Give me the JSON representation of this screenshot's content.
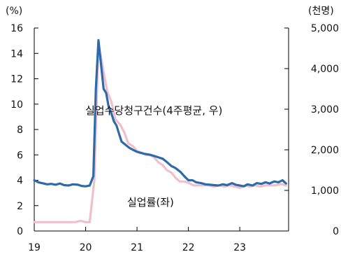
{
  "chart_data": {
    "type": "line",
    "left_axis": {
      "unit_label": "(%)",
      "ylim": [
        0,
        16
      ],
      "ticks": [
        0,
        2,
        4,
        6,
        8,
        10,
        12,
        14,
        16
      ],
      "tick_labels": [
        "0",
        "2",
        "4",
        "6",
        "8",
        "10",
        "12",
        "14",
        "16"
      ]
    },
    "right_axis": {
      "unit_label": "(천명)",
      "ylim": [
        0,
        5000
      ],
      "ticks": [
        0,
        1000,
        2000,
        3000,
        4000,
        5000
      ],
      "tick_labels": [
        "0",
        "1,000",
        "2,000",
        "3,000",
        "4,000",
        "5,000"
      ]
    },
    "x_axis": {
      "xlim": [
        2019.0,
        2023.95
      ],
      "ticks": [
        2019,
        2020,
        2021,
        2022,
        2023
      ],
      "tick_labels": [
        "19",
        "20",
        "21",
        "22",
        "23"
      ]
    },
    "grid": false,
    "annotations": [
      {
        "text": "실업수당청구건수(4주평균,   우)",
        "series": "claims"
      },
      {
        "text": "실업률(좌)",
        "series": "unemployment"
      }
    ],
    "series": [
      {
        "id": "claims",
        "axis": "right",
        "color": "#2e6aa8",
        "x": [
          2019.0,
          2019.08,
          2019.15,
          2019.25,
          2019.33,
          2019.42,
          2019.5,
          2019.58,
          2019.67,
          2019.75,
          2019.85,
          2019.92,
          2020.0,
          2020.08,
          2020.15,
          2020.2,
          2020.25,
          2020.3,
          2020.35,
          2020.4,
          2020.45,
          2020.5,
          2020.55,
          2020.6,
          2020.65,
          2020.7,
          2020.75,
          2020.8,
          2020.85,
          2020.92,
          2021.0,
          2021.08,
          2021.15,
          2021.25,
          2021.33,
          2021.4,
          2021.5,
          2021.58,
          2021.67,
          2021.75,
          2021.85,
          2021.92,
          2022.0,
          2022.08,
          2022.15,
          2022.25,
          2022.33,
          2022.42,
          2022.5,
          2022.58,
          2022.67,
          2022.75,
          2022.85,
          2022.92,
          2023.0,
          2023.08,
          2023.15,
          2023.25,
          2023.33,
          2023.42,
          2023.5,
          2023.58,
          2023.67,
          2023.75,
          2023.83,
          2023.9
        ],
        "values": [
          1250,
          1200,
          1180,
          1150,
          1160,
          1140,
          1170,
          1130,
          1120,
          1150,
          1140,
          1110,
          1100,
          1120,
          1350,
          3500,
          4700,
          4100,
          3500,
          3400,
          3050,
          2900,
          2700,
          2600,
          2400,
          2200,
          2150,
          2100,
          2050,
          2000,
          1950,
          1920,
          1900,
          1880,
          1850,
          1820,
          1780,
          1700,
          1600,
          1550,
          1450,
          1350,
          1250,
          1250,
          1200,
          1180,
          1150,
          1140,
          1130,
          1120,
          1150,
          1130,
          1180,
          1140,
          1120,
          1100,
          1150,
          1120,
          1180,
          1160,
          1200,
          1170,
          1220,
          1200,
          1250,
          1170
        ]
      },
      {
        "id": "unemployment",
        "axis": "left",
        "color": "#f0bfcb",
        "x": [
          2019.0,
          2019.1,
          2019.2,
          2019.3,
          2019.4,
          2019.5,
          2019.6,
          2019.7,
          2019.8,
          2019.9,
          2020.0,
          2020.08,
          2020.17,
          2020.25,
          2020.33,
          2020.42,
          2020.5,
          2020.58,
          2020.67,
          2020.75,
          2020.83,
          2020.92,
          2021.0,
          2021.08,
          2021.17,
          2021.25,
          2021.33,
          2021.42,
          2021.5,
          2021.58,
          2021.67,
          2021.75,
          2021.83,
          2021.92,
          2022.0,
          2022.1,
          2022.2,
          2022.3,
          2022.4,
          2022.5,
          2022.6,
          2022.7,
          2022.8,
          2022.9,
          2023.0,
          2023.1,
          2023.2,
          2023.3,
          2023.4,
          2023.5,
          2023.6,
          2023.7,
          2023.8,
          2023.9
        ],
        "values": [
          0.7,
          0.7,
          0.7,
          0.7,
          0.7,
          0.7,
          0.7,
          0.7,
          0.7,
          0.8,
          0.7,
          0.7,
          4.0,
          14.8,
          13.0,
          11.0,
          10.2,
          8.8,
          8.4,
          7.8,
          6.9,
          6.7,
          6.3,
          6.2,
          6.0,
          6.0,
          5.8,
          5.4,
          5.2,
          4.8,
          4.6,
          4.2,
          3.9,
          3.9,
          3.8,
          3.6,
          3.6,
          3.6,
          3.6,
          3.5,
          3.6,
          3.5,
          3.6,
          3.5,
          3.4,
          3.6,
          3.5,
          3.6,
          3.5,
          3.6,
          3.6,
          3.6,
          3.7,
          3.6
        ]
      }
    ]
  }
}
